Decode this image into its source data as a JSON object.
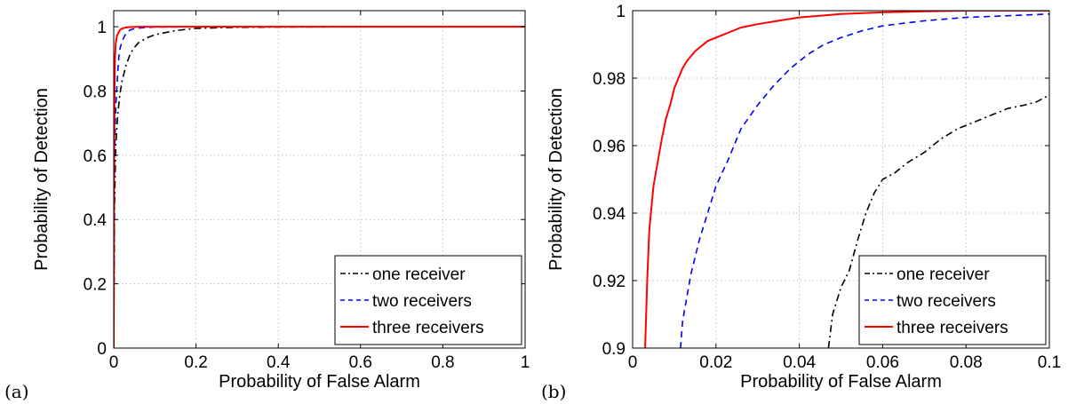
{
  "chart_data": [
    {
      "type": "line",
      "panel_label": "(a)",
      "xlabel": "Probability of False Alarm",
      "ylabel": "Probability of Detection",
      "xlim": [
        0,
        1
      ],
      "ylim": [
        0,
        1.05
      ],
      "xticks": [
        0,
        0.2,
        0.4,
        0.6,
        0.8,
        1
      ],
      "xtick_labels": [
        "0",
        "0.2",
        "0.4",
        "0.6",
        "0.8",
        "1"
      ],
      "yticks": [
        0,
        0.2,
        0.4,
        0.6,
        0.8,
        1
      ],
      "ytick_labels": [
        "0",
        "0.2",
        "0.4",
        "0.6",
        "0.8",
        "1"
      ],
      "grid": true,
      "legend_position": "bottom-right",
      "series": [
        {
          "name": "one receiver",
          "color": "#000000",
          "style": "dashdot",
          "x": [
            0,
            0.002,
            0.005,
            0.01,
            0.015,
            0.02,
            0.03,
            0.04,
            0.05,
            0.06,
            0.08,
            0.1,
            0.15,
            0.2,
            0.3,
            0.4,
            0.6,
            0.8,
            1
          ],
          "y": [
            0,
            0.45,
            0.63,
            0.73,
            0.79,
            0.83,
            0.88,
            0.915,
            0.935,
            0.95,
            0.965,
            0.975,
            0.988,
            0.995,
            0.998,
            0.999,
            1,
            1,
            1
          ]
        },
        {
          "name": "two receivers",
          "color": "#0000ff",
          "style": "dashed",
          "x": [
            0,
            0.002,
            0.005,
            0.008,
            0.012,
            0.015,
            0.02,
            0.03,
            0.04,
            0.05,
            0.07,
            0.1,
            0.2,
            0.4,
            0.6,
            0.8,
            1
          ],
          "y": [
            0,
            0.6,
            0.75,
            0.82,
            0.9,
            0.93,
            0.955,
            0.98,
            0.99,
            0.994,
            0.997,
            0.999,
            1,
            1,
            1,
            1,
            1
          ]
        },
        {
          "name": "three receivers",
          "color": "#ff0000",
          "style": "solid",
          "x": [
            0,
            0.001,
            0.002,
            0.003,
            0.005,
            0.008,
            0.011,
            0.015,
            0.02,
            0.03,
            0.04,
            0.06,
            0.1,
            0.2,
            0.4,
            0.6,
            0.8,
            1
          ],
          "y": [
            0,
            0.6,
            0.8,
            0.9,
            0.95,
            0.972,
            0.98,
            0.99,
            0.994,
            0.998,
            0.999,
            1,
            1,
            1,
            1,
            1,
            1,
            1
          ]
        }
      ]
    },
    {
      "type": "line",
      "panel_label": "(b)",
      "xlabel": "Probability of False Alarm",
      "ylabel": "Probability of Detection",
      "xlim": [
        0,
        0.1
      ],
      "ylim": [
        0.9,
        1
      ],
      "xticks": [
        0,
        0.02,
        0.04,
        0.06,
        0.08,
        0.1
      ],
      "xtick_labels": [
        "0",
        "0.02",
        "0.04",
        "0.06",
        "0.08",
        "0.1"
      ],
      "yticks": [
        0.9,
        0.92,
        0.94,
        0.96,
        0.98,
        1
      ],
      "ytick_labels": [
        "0.9",
        "0.92",
        "0.94",
        "0.96",
        "0.98",
        "1"
      ],
      "grid": true,
      "legend_position": "bottom-right",
      "series": [
        {
          "name": "one receiver",
          "color": "#000000",
          "style": "dashdot",
          "x": [
            0.047,
            0.048,
            0.05,
            0.052,
            0.054,
            0.056,
            0.058,
            0.06,
            0.063,
            0.066,
            0.07,
            0.074,
            0.078,
            0.082,
            0.086,
            0.09,
            0.094,
            0.097,
            0.1
          ],
          "y": [
            0.9,
            0.91,
            0.918,
            0.923,
            0.932,
            0.94,
            0.946,
            0.95,
            0.952,
            0.955,
            0.958,
            0.962,
            0.965,
            0.967,
            0.969,
            0.971,
            0.972,
            0.973,
            0.975
          ]
        },
        {
          "name": "two receivers",
          "color": "#0000ff",
          "style": "dashed",
          "x": [
            0.0115,
            0.012,
            0.013,
            0.014,
            0.016,
            0.018,
            0.02,
            0.023,
            0.026,
            0.03,
            0.034,
            0.038,
            0.042,
            0.046,
            0.05,
            0.055,
            0.06,
            0.07,
            0.08,
            0.09,
            0.1
          ],
          "y": [
            0.9,
            0.908,
            0.915,
            0.922,
            0.932,
            0.94,
            0.948,
            0.956,
            0.965,
            0.972,
            0.978,
            0.983,
            0.987,
            0.99,
            0.992,
            0.994,
            0.9955,
            0.997,
            0.998,
            0.9985,
            0.999
          ]
        },
        {
          "name": "three receivers",
          "color": "#ff0000",
          "style": "solid",
          "x": [
            0.003,
            0.0035,
            0.004,
            0.005,
            0.006,
            0.007,
            0.008,
            0.009,
            0.01,
            0.011,
            0.012,
            0.013,
            0.015,
            0.018,
            0.022,
            0.026,
            0.03,
            0.035,
            0.04,
            0.045,
            0.05,
            0.06,
            0.07,
            0.08,
            0.09,
            0.1
          ],
          "y": [
            0.9,
            0.92,
            0.935,
            0.948,
            0.955,
            0.962,
            0.968,
            0.972,
            0.977,
            0.98,
            0.983,
            0.985,
            0.988,
            0.991,
            0.993,
            0.995,
            0.996,
            0.997,
            0.998,
            0.9985,
            0.999,
            0.9995,
            0.9998,
            1,
            1,
            1
          ]
        }
      ]
    }
  ]
}
